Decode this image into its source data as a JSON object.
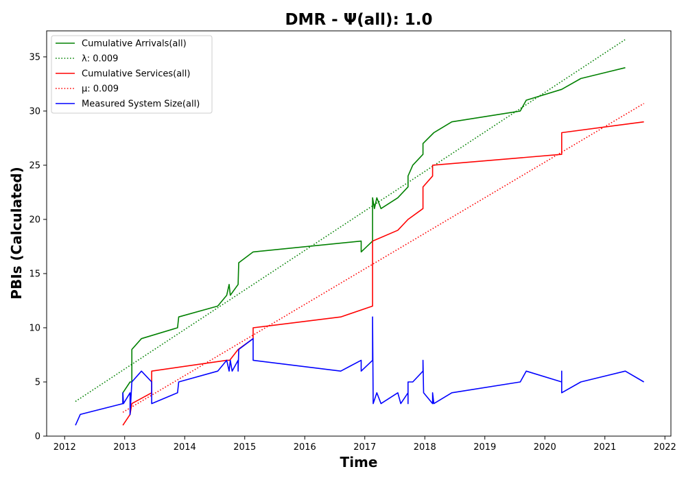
{
  "chart_data": {
    "type": "line",
    "title": "DMR -  Ψ(all): 1.0",
    "xlabel": "Time",
    "ylabel": "PBIs (Calculated)",
    "xlim": [
      2011.7,
      2022.1
    ],
    "ylim": [
      0,
      37.4
    ],
    "xticks": [
      2012,
      2013,
      2014,
      2015,
      2016,
      2017,
      2018,
      2019,
      2020,
      2021,
      2022
    ],
    "yticks": [
      0,
      5,
      10,
      15,
      20,
      25,
      30,
      35
    ],
    "grid": false,
    "legend_position": "upper-left",
    "series": [
      {
        "name": "Cumulative Arrivals(all)",
        "color": "#008000",
        "style": "solid",
        "points": [
          [
            2012.97,
            3
          ],
          [
            2012.97,
            4
          ],
          [
            2013.09,
            5
          ],
          [
            2013.12,
            5
          ],
          [
            2013.12,
            8
          ],
          [
            2013.28,
            9
          ],
          [
            2013.88,
            10
          ],
          [
            2013.9,
            11
          ],
          [
            2014.55,
            12
          ],
          [
            2014.7,
            13
          ],
          [
            2014.74,
            14
          ],
          [
            2014.76,
            13
          ],
          [
            2014.89,
            14
          ],
          [
            2014.9,
            16
          ],
          [
            2015.14,
            17
          ],
          [
            2016.94,
            18
          ],
          [
            2016.94,
            17
          ],
          [
            2017.13,
            18
          ],
          [
            2017.13,
            22
          ],
          [
            2017.16,
            21
          ],
          [
            2017.2,
            22
          ],
          [
            2017.27,
            21
          ],
          [
            2017.55,
            22
          ],
          [
            2017.72,
            23
          ],
          [
            2017.72,
            24
          ],
          [
            2017.8,
            25
          ],
          [
            2017.97,
            26
          ],
          [
            2017.97,
            27
          ],
          [
            2018.15,
            28
          ],
          [
            2018.45,
            29
          ],
          [
            2019.59,
            30
          ],
          [
            2019.69,
            31
          ],
          [
            2020.28,
            32
          ],
          [
            2020.6,
            33
          ],
          [
            2021.34,
            34
          ]
        ]
      },
      {
        "name": "λ: 0.009",
        "color": "#008000",
        "style": "dotted",
        "points": [
          [
            2012.18,
            3.2
          ],
          [
            2021.34,
            36.6
          ]
        ]
      },
      {
        "name": "Cumulative Services(all)",
        "color": "#ff0000",
        "style": "solid",
        "points": [
          [
            2012.97,
            1
          ],
          [
            2013.09,
            2
          ],
          [
            2013.12,
            3
          ],
          [
            2013.45,
            4
          ],
          [
            2013.45,
            6
          ],
          [
            2014.7,
            7
          ],
          [
            2014.75,
            7
          ],
          [
            2014.89,
            8
          ],
          [
            2015.14,
            9
          ],
          [
            2015.14,
            10
          ],
          [
            2016.6,
            11
          ],
          [
            2017.13,
            12
          ],
          [
            2017.13,
            18
          ],
          [
            2017.55,
            19
          ],
          [
            2017.72,
            20
          ],
          [
            2017.97,
            21
          ],
          [
            2017.97,
            23
          ],
          [
            2018.13,
            24
          ],
          [
            2018.13,
            25
          ],
          [
            2020.28,
            26
          ],
          [
            2020.28,
            28
          ],
          [
            2021.65,
            29
          ]
        ]
      },
      {
        "name": "μ: 0.009",
        "color": "#ff0000",
        "style": "dotted",
        "points": [
          [
            2012.97,
            2.2
          ],
          [
            2021.65,
            30.7
          ]
        ]
      },
      {
        "name": "Measured System Size(all)",
        "color": "#0000ff",
        "style": "solid",
        "points": [
          [
            2012.18,
            1
          ],
          [
            2012.26,
            2
          ],
          [
            2012.97,
            3
          ],
          [
            2012.97,
            4
          ],
          [
            2012.98,
            3
          ],
          [
            2013.09,
            4
          ],
          [
            2013.09,
            2
          ],
          [
            2013.12,
            5
          ],
          [
            2013.28,
            6
          ],
          [
            2013.45,
            5
          ],
          [
            2013.45,
            3
          ],
          [
            2013.88,
            4
          ],
          [
            2013.9,
            5
          ],
          [
            2014.55,
            6
          ],
          [
            2014.7,
            7
          ],
          [
            2014.74,
            6
          ],
          [
            2014.76,
            7
          ],
          [
            2014.79,
            6
          ],
          [
            2014.89,
            7
          ],
          [
            2014.89,
            6
          ],
          [
            2014.9,
            8
          ],
          [
            2015.14,
            9
          ],
          [
            2015.14,
            7
          ],
          [
            2016.6,
            6
          ],
          [
            2016.94,
            7
          ],
          [
            2016.94,
            6
          ],
          [
            2017.13,
            7
          ],
          [
            2017.13,
            11
          ],
          [
            2017.14,
            3
          ],
          [
            2017.2,
            4
          ],
          [
            2017.27,
            3
          ],
          [
            2017.55,
            4
          ],
          [
            2017.6,
            3
          ],
          [
            2017.72,
            4
          ],
          [
            2017.72,
            3
          ],
          [
            2017.72,
            5
          ],
          [
            2017.8,
            5
          ],
          [
            2017.97,
            6
          ],
          [
            2017.97,
            7
          ],
          [
            2017.98,
            4
          ],
          [
            2018.13,
            3
          ],
          [
            2018.13,
            4
          ],
          [
            2018.15,
            3
          ],
          [
            2018.45,
            4
          ],
          [
            2019.59,
            5
          ],
          [
            2019.69,
            6
          ],
          [
            2020.28,
            5
          ],
          [
            2020.28,
            6
          ],
          [
            2020.28,
            4
          ],
          [
            2020.6,
            5
          ],
          [
            2021.34,
            6
          ],
          [
            2021.65,
            5
          ]
        ]
      }
    ]
  }
}
